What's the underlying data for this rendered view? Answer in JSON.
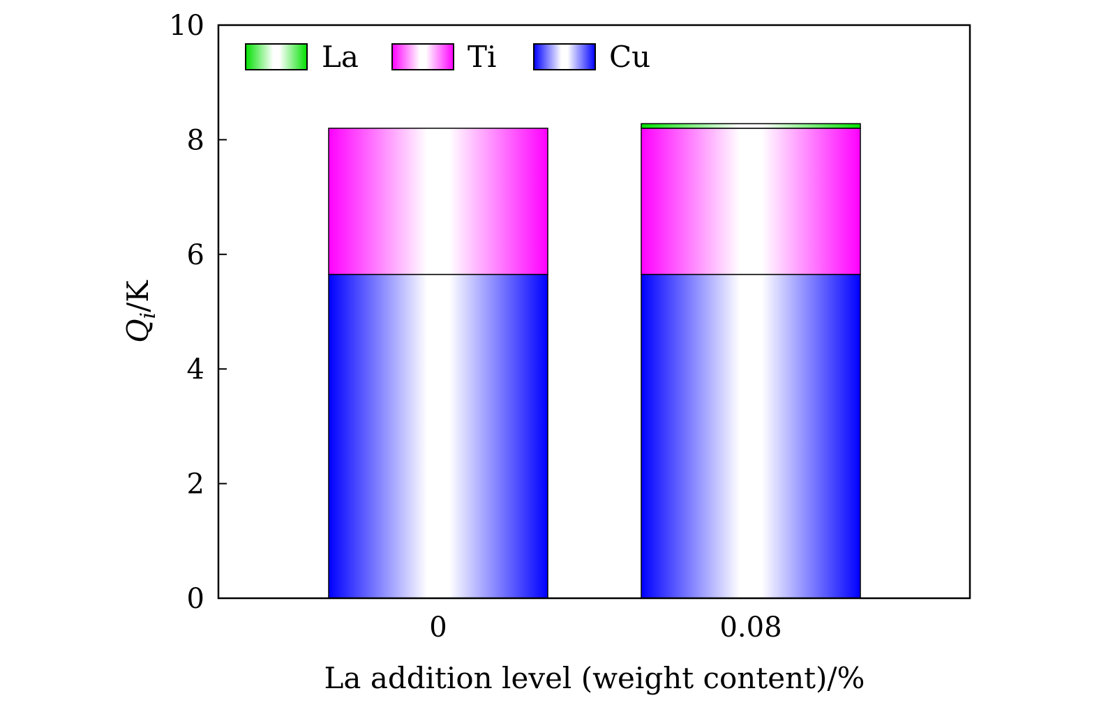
{
  "chart_data": {
    "type": "bar",
    "stacked": true,
    "categories": [
      "0",
      "0.08"
    ],
    "series": [
      {
        "name": "Cu",
        "values": [
          5.65,
          5.65
        ],
        "color": "#0000ff"
      },
      {
        "name": "Ti",
        "values": [
          2.55,
          2.55
        ],
        "color": "#ff00ff"
      },
      {
        "name": "La",
        "values": [
          0.0,
          0.08
        ],
        "color": "#00e000"
      }
    ],
    "legend_order": [
      "La",
      "Ti",
      "Cu"
    ],
    "legend_position": "top-left",
    "xlabel": "La addition level (weight content)/%",
    "ylabel": {
      "symbol": "Q",
      "subscript": "i",
      "unit": "/K"
    },
    "ylim": [
      0,
      10
    ],
    "yticks": [
      0,
      2,
      4,
      6,
      8,
      10
    ],
    "grid": false
  }
}
